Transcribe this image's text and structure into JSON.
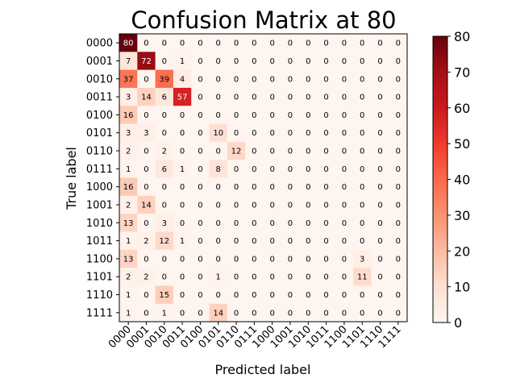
{
  "chart_data": {
    "type": "heatmap",
    "title": "Confusion Matrix at 80",
    "xlabel": "Predicted label",
    "ylabel": "True label",
    "labels": [
      "0000",
      "0001",
      "0010",
      "0011",
      "0100",
      "0101",
      "0110",
      "0111",
      "1000",
      "1001",
      "1010",
      "1011",
      "1100",
      "1101",
      "1110",
      "1111"
    ],
    "matrix": [
      [
        80,
        0,
        0,
        0,
        0,
        0,
        0,
        0,
        0,
        0,
        0,
        0,
        0,
        0,
        0,
        0
      ],
      [
        7,
        72,
        0,
        1,
        0,
        0,
        0,
        0,
        0,
        0,
        0,
        0,
        0,
        0,
        0,
        0
      ],
      [
        37,
        0,
        39,
        4,
        0,
        0,
        0,
        0,
        0,
        0,
        0,
        0,
        0,
        0,
        0,
        0
      ],
      [
        3,
        14,
        6,
        57,
        0,
        0,
        0,
        0,
        0,
        0,
        0,
        0,
        0,
        0,
        0,
        0
      ],
      [
        16,
        0,
        0,
        0,
        0,
        0,
        0,
        0,
        0,
        0,
        0,
        0,
        0,
        0,
        0,
        0
      ],
      [
        3,
        3,
        0,
        0,
        0,
        10,
        0,
        0,
        0,
        0,
        0,
        0,
        0,
        0,
        0,
        0
      ],
      [
        2,
        0,
        2,
        0,
        0,
        0,
        12,
        0,
        0,
        0,
        0,
        0,
        0,
        0,
        0,
        0
      ],
      [
        1,
        0,
        6,
        1,
        0,
        8,
        0,
        0,
        0,
        0,
        0,
        0,
        0,
        0,
        0,
        0
      ],
      [
        16,
        0,
        0,
        0,
        0,
        0,
        0,
        0,
        0,
        0,
        0,
        0,
        0,
        0,
        0,
        0
      ],
      [
        2,
        14,
        0,
        0,
        0,
        0,
        0,
        0,
        0,
        0,
        0,
        0,
        0,
        0,
        0,
        0
      ],
      [
        13,
        0,
        3,
        0,
        0,
        0,
        0,
        0,
        0,
        0,
        0,
        0,
        0,
        0,
        0,
        0
      ],
      [
        1,
        2,
        12,
        1,
        0,
        0,
        0,
        0,
        0,
        0,
        0,
        0,
        0,
        0,
        0,
        0
      ],
      [
        13,
        0,
        0,
        0,
        0,
        0,
        0,
        0,
        0,
        0,
        0,
        0,
        0,
        3,
        0,
        0
      ],
      [
        2,
        2,
        0,
        0,
        0,
        1,
        0,
        0,
        0,
        0,
        0,
        0,
        0,
        11,
        0,
        0
      ],
      [
        1,
        0,
        15,
        0,
        0,
        0,
        0,
        0,
        0,
        0,
        0,
        0,
        0,
        0,
        0,
        0
      ],
      [
        1,
        0,
        1,
        0,
        0,
        14,
        0,
        0,
        0,
        0,
        0,
        0,
        0,
        0,
        0,
        0
      ]
    ],
    "colormap": "Reds",
    "vmin": 0,
    "vmax": 80,
    "colorbar_ticks": [
      0,
      10,
      20,
      30,
      40,
      50,
      60,
      70,
      80
    ],
    "colorbar_tick_labels": [
      "0",
      "10",
      "20",
      "30",
      "40",
      "50",
      "60",
      "70",
      "80"
    ],
    "grid": false,
    "colors": {
      "high": "#67000d",
      "low": "#fff5f0",
      "text_dark": "#000000",
      "text_light": "#ffffff"
    }
  }
}
